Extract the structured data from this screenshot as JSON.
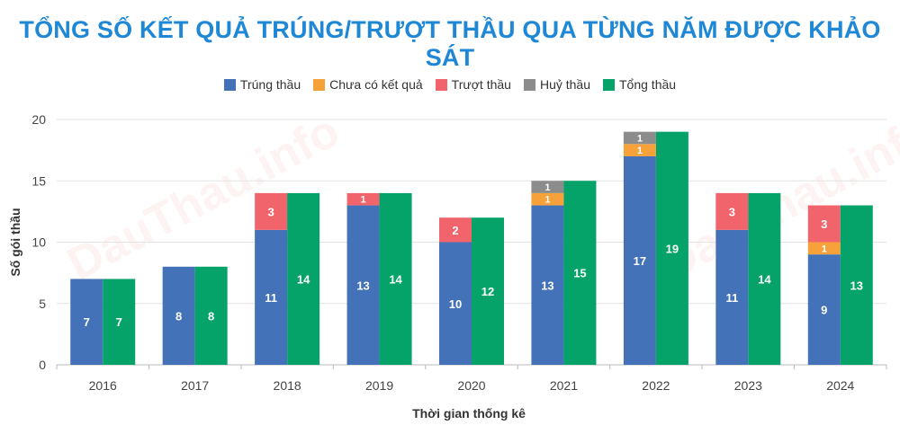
{
  "title": "TỔNG SỐ KẾT QUẢ TRÚNG/TRƯỢT THẦU QUA TỪNG NĂM ĐƯỢC KHẢO SÁT",
  "watermark": "DauThau.info",
  "chart_data": {
    "type": "bar",
    "title": "TỔNG SỐ KẾT QUẢ TRÚNG/TRƯỢT THẦU QUA TỪNG NĂM ĐƯỢC KHẢO SÁT",
    "xlabel": "Thời gian thống kê",
    "ylabel": "Số gói thầu",
    "ylim": [
      0,
      20
    ],
    "yticks": [
      0,
      5,
      10,
      15,
      20
    ],
    "grid": true,
    "legend_position": "top-center",
    "categories": [
      "2016",
      "2017",
      "2018",
      "2019",
      "2020",
      "2021",
      "2022",
      "2023",
      "2024"
    ],
    "series": [
      {
        "name": "Trúng thầu",
        "color": "#4472b8",
        "stack": "a",
        "values": [
          7,
          8,
          11,
          13,
          10,
          13,
          17,
          11,
          9
        ]
      },
      {
        "name": "Chưa có kết quả",
        "color": "#f6a13a",
        "stack": "a",
        "values": [
          0,
          0,
          0,
          0,
          0,
          1,
          1,
          0,
          1
        ]
      },
      {
        "name": "Trượt thầu",
        "color": "#f1646c",
        "stack": "a",
        "values": [
          0,
          0,
          3,
          1,
          2,
          0,
          0,
          3,
          3
        ]
      },
      {
        "name": "Huỷ thầu",
        "color": "#8c8c8c",
        "stack": "a",
        "values": [
          0,
          0,
          0,
          0,
          0,
          1,
          1,
          0,
          0
        ]
      },
      {
        "name": "Tổng thầu",
        "color": "#05a36a",
        "stack": "b",
        "values": [
          7,
          8,
          14,
          14,
          12,
          15,
          19,
          14,
          13
        ]
      }
    ]
  }
}
